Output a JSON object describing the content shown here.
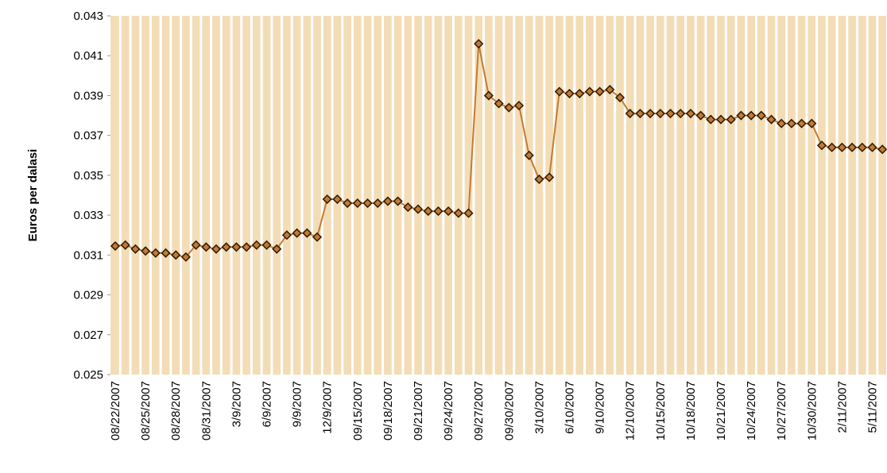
{
  "chart_data": {
    "type": "line",
    "y_label": "Euros per dalasi",
    "categories": [
      "08/22/2007",
      null,
      null,
      "08/25/2007",
      null,
      null,
      "08/28/2007",
      null,
      null,
      "08/31/2007",
      null,
      null,
      "3/9/2007",
      null,
      null,
      "6/9/2007",
      null,
      null,
      "9/9/2007",
      null,
      null,
      "12/9/2007",
      null,
      null,
      "09/15/2007",
      null,
      null,
      "09/18/2007",
      null,
      null,
      "09/21/2007",
      null,
      null,
      "09/24/2007",
      null,
      null,
      "09/27/2007",
      null,
      null,
      "09/30/2007",
      null,
      null,
      "3/10/2007",
      null,
      null,
      "6/10/2007",
      null,
      null,
      "9/10/2007",
      null,
      null,
      "12/10/2007",
      null,
      null,
      "10/15/2007",
      null,
      null,
      "10/18/2007",
      null,
      null,
      "10/21/2007",
      null,
      null,
      "10/24/2007",
      null,
      null,
      "10/27/2007",
      null,
      null,
      "10/30/2007",
      null,
      null,
      "2/11/2007",
      null,
      null,
      "5/11/2007",
      null
    ],
    "values": [
      0.03145,
      0.0315,
      0.0313,
      0.0312,
      0.0311,
      0.0311,
      0.031,
      0.0309,
      0.0315,
      0.0314,
      0.0313,
      0.0314,
      0.0314,
      0.0314,
      0.0315,
      0.0315,
      0.0313,
      0.032,
      0.0321,
      0.0321,
      0.0319,
      0.0338,
      0.0338,
      0.0336,
      0.0336,
      0.0336,
      0.0336,
      0.0337,
      0.0337,
      0.0334,
      0.0333,
      0.0332,
      0.0332,
      0.0332,
      0.0331,
      0.0331,
      0.0416,
      0.039,
      0.0386,
      0.0384,
      0.0385,
      0.036,
      0.0348,
      0.0349,
      0.0392,
      0.0391,
      0.0391,
      0.0392,
      0.0392,
      0.0393,
      0.0389,
      0.0381,
      0.0381,
      0.0381,
      0.0381,
      0.0381,
      0.0381,
      0.0381,
      0.038,
      0.0378,
      0.0378,
      0.0378,
      0.038,
      0.038,
      0.038,
      0.0378,
      0.0376,
      0.0376,
      0.0376,
      0.0376,
      0.0365,
      0.0364,
      0.0364,
      0.0364,
      0.0364,
      0.0364,
      0.0363
    ],
    "color": "#c47a32",
    "marker_edge_color": "#2b1a05",
    "background": "#f3ddb7",
    "ylim": [
      0.025,
      0.043
    ],
    "yticks": [
      0.025,
      0.027,
      0.029,
      0.031,
      0.033,
      0.035,
      0.037,
      0.039,
      0.041,
      0.043
    ]
  }
}
